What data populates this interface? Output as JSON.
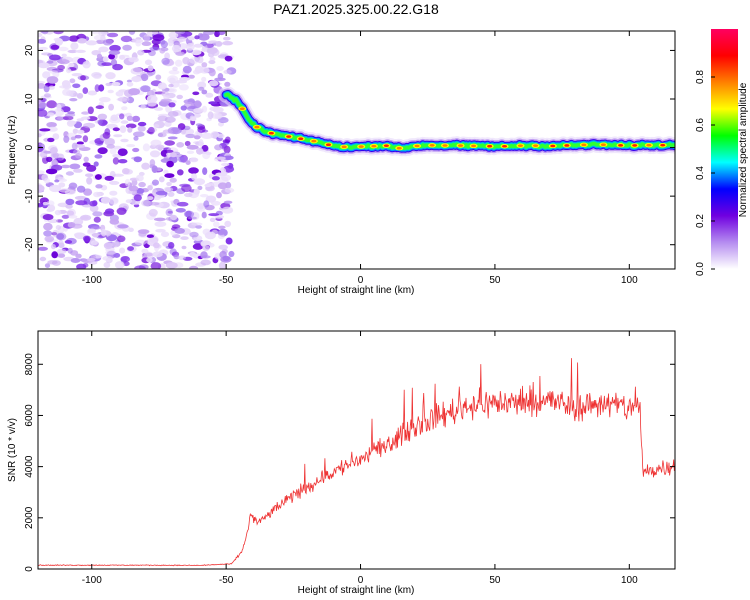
{
  "title": "PAZ1.2025.325.00.22.G18",
  "chart_data": [
    {
      "type": "heatmap",
      "name": "spectrogram",
      "xlabel": "Height of straight line (km)",
      "ylabel": "Frequency (Hz)",
      "xlim": [
        -120,
        117
      ],
      "ylim": [
        -25,
        24
      ],
      "xticks": [
        -100,
        -50,
        0,
        50,
        100
      ],
      "xtick_labels": [
        "-100",
        "-50",
        "0",
        "50",
        "100"
      ],
      "yticks": [
        -20,
        -10,
        0,
        10,
        20
      ],
      "ytick_labels": [
        "-20",
        "-10",
        "0",
        "10",
        "20"
      ],
      "ridge_x": [
        -50,
        -48,
        -46,
        -44,
        -42,
        -40,
        -38,
        -35,
        -32,
        -28,
        -24,
        -20,
        -16,
        -12,
        -8,
        -4,
        0,
        5,
        10,
        15,
        20,
        25,
        30,
        35,
        40,
        45,
        50,
        55,
        60,
        65,
        70,
        75,
        80,
        85,
        90,
        95,
        100,
        105,
        110,
        117
      ],
      "ridge_y": [
        11,
        10.2,
        9.5,
        8,
        6,
        4.8,
        4,
        3.2,
        2.8,
        2.4,
        2,
        1.6,
        1.2,
        0.6,
        0.2,
        0.1,
        0.2,
        0.3,
        0.4,
        -0.2,
        0.3,
        0.5,
        0.4,
        0.5,
        0.3,
        0.4,
        0.2,
        0.3,
        0.4,
        0.4,
        0.3,
        0.4,
        0.5,
        0.6,
        0.6,
        0.5,
        0.4,
        0.5,
        0.5,
        0.5
      ],
      "noise_region_x": [
        -120,
        -48
      ],
      "colorbar": {
        "label": "Normalized spectral amplitude",
        "range": [
          0,
          1
        ],
        "ticks": [
          "0.0",
          "0.2",
          "0.4",
          "0.6",
          "0.8"
        ],
        "tick_values": [
          0,
          0.2,
          0.4,
          0.6,
          0.8
        ],
        "colors": [
          "#ffffff",
          "#b58cf0",
          "#7000e0",
          "#0000ff",
          "#00ffff",
          "#00ff00",
          "#ffff00",
          "#ff8000",
          "#ff0000",
          "#ff0060"
        ]
      }
    },
    {
      "type": "line",
      "name": "snr",
      "xlabel": "Height of straight line (km)",
      "ylabel": "SNR (10 * v/v)",
      "xlim": [
        -120,
        117
      ],
      "ylim": [
        0,
        9300
      ],
      "xticks": [
        -100,
        -50,
        0,
        50,
        100
      ],
      "xtick_labels": [
        "-100",
        "-50",
        "0",
        "50",
        "100"
      ],
      "yticks": [
        0,
        2000,
        4000,
        6000,
        8000
      ],
      "ytick_labels": [
        "0",
        "2000",
        "4000",
        "6000",
        "8000"
      ],
      "color": "#ee3333",
      "x": [
        -120,
        -100,
        -80,
        -60,
        -48,
        -44,
        -42,
        -41,
        -38,
        -30,
        -20,
        -10,
        0,
        10,
        20,
        30,
        40,
        50,
        60,
        70,
        80,
        90,
        100,
        103,
        104,
        105,
        110,
        117
      ],
      "y": [
        150,
        150,
        150,
        140,
        200,
        700,
        1500,
        2100,
        1800,
        2500,
        3200,
        3800,
        4300,
        4800,
        5600,
        6000,
        6400,
        6500,
        6500,
        6600,
        6300,
        6500,
        6300,
        6400,
        6200,
        3800,
        3900,
        4100
      ]
    }
  ]
}
